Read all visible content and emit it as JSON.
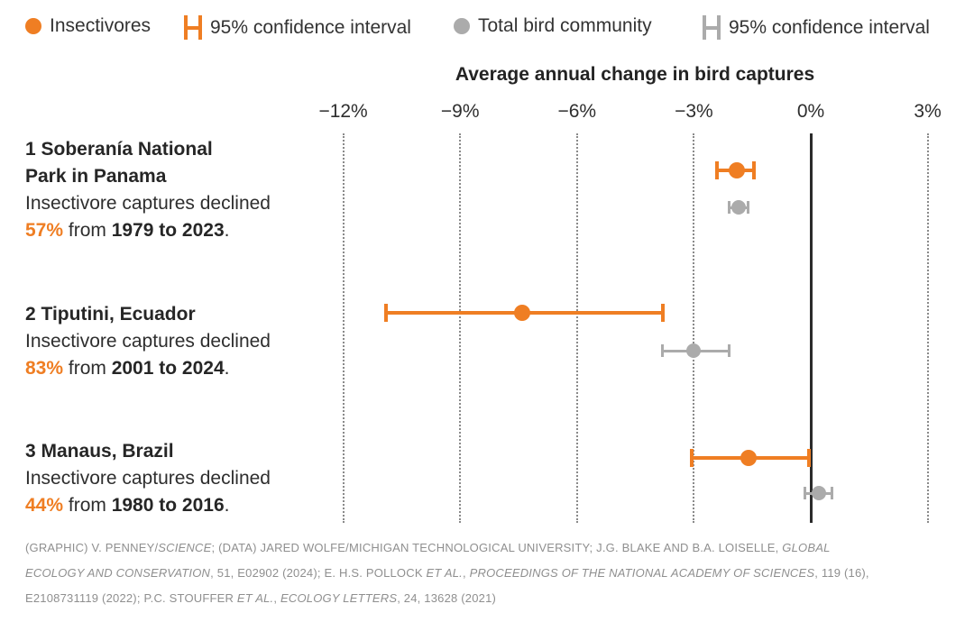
{
  "colors": {
    "insectivores": "#EF7E23",
    "total": "#ABABAB",
    "zero_line": "#2B2B2B",
    "text": "#2E2E2E",
    "footnote": "#8F8F8F"
  },
  "legend": {
    "items": [
      {
        "label": "Insectivores",
        "symbol": "dot",
        "series": "insectivores"
      },
      {
        "label": "95% confidence interval",
        "symbol": "error-bar",
        "series": "insectivores"
      },
      {
        "label": "Total bird community",
        "symbol": "dot",
        "series": "total"
      },
      {
        "label": "95% confidence interval",
        "symbol": "error-bar",
        "series": "total"
      }
    ]
  },
  "chart_data": {
    "type": "scatter",
    "variant": "dot-and-whisker",
    "title": "Average annual change in bird captures",
    "x_axis": {
      "unit": "% per year",
      "ticks": [
        {
          "label": "−12%",
          "value": -12
        },
        {
          "label": "−9%",
          "value": -9
        },
        {
          "label": "−6%",
          "value": -6
        },
        {
          "label": "−3%",
          "value": -3
        },
        {
          "label": "0%",
          "value": 0
        },
        {
          "label": "3%",
          "value": 3
        }
      ],
      "range": [
        -13.5,
        4.2
      ],
      "gridlines": "vertical dotted",
      "zero_line": true
    },
    "series": [
      {
        "name": "Insectivores",
        "color": "#EF7E23"
      },
      {
        "name": "Total bird community",
        "color": "#ABABAB"
      }
    ],
    "rows": [
      {
        "label": "1 Soberanía National Park in Panama",
        "insectivores": {
          "value": -1.9,
          "ci_low": -2.4,
          "ci_high": -1.45
        },
        "total": {
          "value": -1.85,
          "ci_low": -2.1,
          "ci_high": -1.6
        }
      },
      {
        "label": "2 Tiputini, Ecuador",
        "insectivores": {
          "value": -7.4,
          "ci_low": -10.9,
          "ci_high": -3.8
        },
        "total": {
          "value": -3.0,
          "ci_low": -3.8,
          "ci_high": -2.1
        }
      },
      {
        "label": "3 Manaus, Brazil",
        "insectivores": {
          "value": -1.6,
          "ci_low": -3.05,
          "ci_high": -0.05
        },
        "total": {
          "value": 0.2,
          "ci_low": -0.15,
          "ci_high": 0.55
        }
      }
    ]
  },
  "rows": [
    {
      "title_line1": "1 Soberanía National",
      "title_line2": "Park in Panama",
      "desc": "Insectivore captures declined",
      "pct": "57%",
      "mid": " from ",
      "years": "1979 to 2023",
      "end": "."
    },
    {
      "title_line1": "2 Tiputini, Ecuador",
      "desc": "Insectivore captures declined",
      "pct": "83%",
      "mid": " from ",
      "years": "2001 to 2024",
      "end": "."
    },
    {
      "title_line1": "3 Manaus, Brazil",
      "desc": "Insectivore captures declined",
      "pct": "44%",
      "mid": " from ",
      "years": "1980 to 2016",
      "end": "."
    }
  ],
  "footer": {
    "lines": [
      [
        {
          "text": "(GRAPHIC) V. PENNEY/",
          "italic": false
        },
        {
          "text": "SCIENCE",
          "italic": true
        },
        {
          "text": "; (DATA) JARED WOLFE/MICHIGAN TECHNOLOGICAL UNIVERSITY; J.G. BLAKE AND B.A. LOISELLE, ",
          "italic": false
        },
        {
          "text": "GLOBAL",
          "italic": true
        }
      ],
      [
        {
          "text": "ECOLOGY AND CONSERVATION",
          "italic": true
        },
        {
          "text": ", 51, E02902 (2024); E. H.S. POLLOCK ",
          "italic": false
        },
        {
          "text": "ET AL.",
          "italic": true
        },
        {
          "text": ", ",
          "italic": false
        },
        {
          "text": "PROCEEDINGS OF THE NATIONAL ACADEMY OF SCIENCES",
          "italic": true
        },
        {
          "text": ", 119 (16),",
          "italic": false
        }
      ],
      [
        {
          "text": "E2108731119 (2022); P.C. STOUFFER ",
          "italic": false
        },
        {
          "text": "ET AL.",
          "italic": true
        },
        {
          "text": ", ",
          "italic": false
        },
        {
          "text": "ECOLOGY LETTERS",
          "italic": true
        },
        {
          "text": ", 24, 13628 (2021)",
          "italic": false
        }
      ]
    ]
  }
}
